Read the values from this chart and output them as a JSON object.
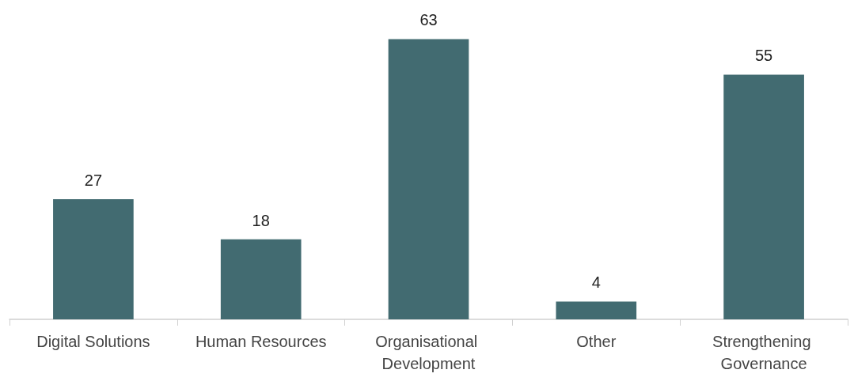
{
  "chart_data": {
    "type": "bar",
    "categories": [
      "Digital Solutions",
      "Human Resources",
      "Organisational Development",
      "Other",
      "Strengthening Governance"
    ],
    "values": [
      27,
      18,
      63,
      4,
      55
    ],
    "color": "#426b71",
    "data_labels": true
  }
}
